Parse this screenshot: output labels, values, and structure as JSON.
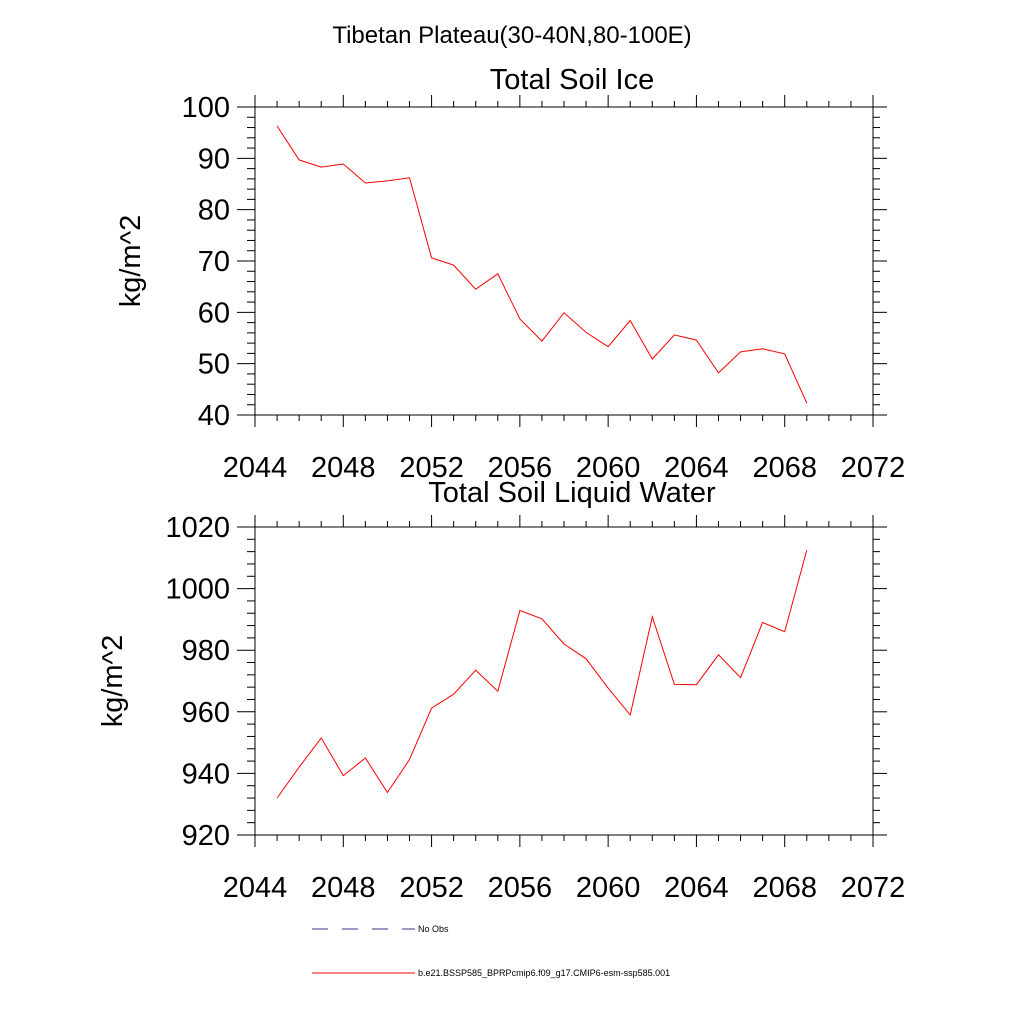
{
  "page_title": "Tibetan Plateau(30-40N,80-100E)",
  "legend": [
    {
      "label": "No Obs",
      "color": "#33338c",
      "dash": true
    },
    {
      "label": "b.e21.BSSP585_BPRPcmip6.f09_g17.CMIP6-esm-ssp585.001",
      "color": "#ff0000",
      "dash": false
    }
  ],
  "chart_data": [
    {
      "type": "line",
      "title": "Total Soil Ice",
      "xlabel": "",
      "ylabel": "kg/m^2",
      "xlim": [
        2044,
        2072
      ],
      "ylim": [
        40,
        100
      ],
      "x_ticks": [
        2044,
        2048,
        2052,
        2056,
        2060,
        2064,
        2068,
        2072
      ],
      "y_ticks": [
        40,
        50,
        60,
        70,
        80,
        90,
        100
      ],
      "grid": false,
      "series": [
        {
          "name": "b.e21.BSSP585_BPRPcmip6.f09_g17.CMIP6-esm-ssp585.001",
          "color": "#ff0000",
          "x": [
            2045,
            2046,
            2047,
            2048,
            2049,
            2050,
            2051,
            2052,
            2053,
            2054,
            2055,
            2056,
            2057,
            2058,
            2059,
            2060,
            2061,
            2062,
            2063,
            2064,
            2065,
            2066,
            2067,
            2068,
            2069
          ],
          "y": [
            96.3,
            89.7,
            88.3,
            88.9,
            85.2,
            85.6,
            86.2,
            70.6,
            69.2,
            64.5,
            67.5,
            58.7,
            54.4,
            59.9,
            56.1,
            53.3,
            58.4,
            50.9,
            55.6,
            54.6,
            48.2,
            52.3,
            52.9,
            51.9,
            42.3
          ]
        }
      ]
    },
    {
      "type": "line",
      "title": "Total Soil Liquid Water",
      "xlabel": "",
      "ylabel": "kg/m^2",
      "xlim": [
        2044,
        2072
      ],
      "ylim": [
        920,
        1020
      ],
      "x_ticks": [
        2044,
        2048,
        2052,
        2056,
        2060,
        2064,
        2068,
        2072
      ],
      "y_ticks": [
        920,
        940,
        960,
        980,
        1000,
        1020
      ],
      "grid": false,
      "series": [
        {
          "name": "b.e21.BSSP585_BPRPcmip6.f09_g17.CMIP6-esm-ssp585.001",
          "color": "#ff0000",
          "x": [
            2045,
            2046,
            2047,
            2048,
            2049,
            2050,
            2051,
            2052,
            2053,
            2054,
            2055,
            2056,
            2057,
            2058,
            2059,
            2060,
            2061,
            2062,
            2063,
            2064,
            2065,
            2066,
            2067,
            2068,
            2069
          ],
          "y": [
            932,
            942,
            951.5,
            939.3,
            945,
            933.8,
            944.5,
            961.2,
            965.7,
            973.5,
            966.7,
            992.9,
            990.2,
            982,
            977.2,
            967.7,
            959,
            990.8,
            968.9,
            968.8,
            978.5,
            971.1,
            989,
            986,
            1012.5
          ]
        }
      ]
    }
  ]
}
